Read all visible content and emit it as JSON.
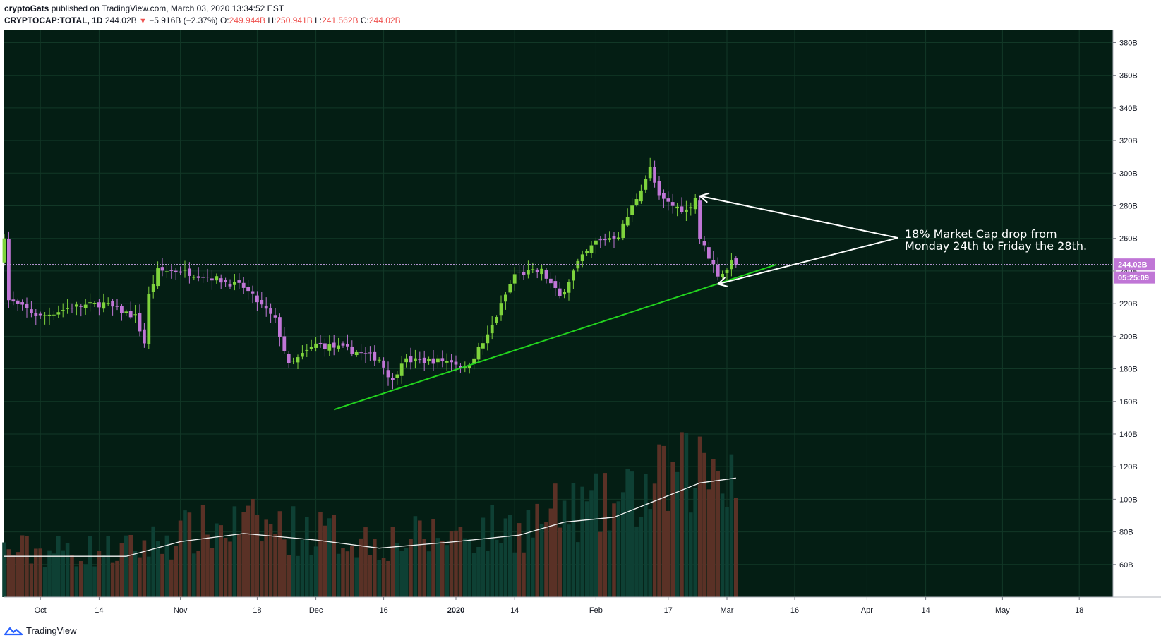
{
  "header": {
    "author": "cryptoGats",
    "published_text": "published on TradingView.com, March 03, 2020 13:34:52 EST",
    "symbol": "CRYPTOCAP:TOTAL, 1D",
    "last": "244.02B",
    "change": "−5.916B (−2.37%)",
    "o_label": "O:",
    "o_value": "249.944B",
    "h_label": "H:",
    "h_value": "250.941B",
    "l_label": "L:",
    "l_value": "241.562B",
    "c_label": "C:",
    "c_value": "244.02B"
  },
  "price_badge": "244.02B",
  "countdown_badge": "05:25:09",
  "annotation": {
    "line1": "18% Market Cap drop from",
    "line2": "Monday 24th to Friday the 28th."
  },
  "footer": {
    "logo_text": "TradingView"
  },
  "colors": {
    "background": "#041e14",
    "up": "#7ed33c",
    "down": "#c076d6",
    "trend": "#22d41e",
    "volume_up": "#0e4034",
    "volume_down": "#5a3126",
    "ma": "#f2f2f2",
    "badge": "#c076d6"
  },
  "chart_data": {
    "type": "candlestick",
    "timeframe": "1D",
    "ylim": [
      40,
      388
    ],
    "y_ticks": [
      "380B",
      "360B",
      "340B",
      "320B",
      "300B",
      "280B",
      "260B",
      "240B",
      "220B",
      "200B",
      "180B",
      "160B",
      "140B",
      "120B",
      "100B",
      "80B",
      "60B"
    ],
    "x_ticks": [
      "Oct",
      "14",
      "Nov",
      "18",
      "Dec",
      "16",
      "2020",
      "14",
      "Feb",
      "17",
      "Mar",
      "16",
      "Apr",
      "14",
      "May",
      "18"
    ],
    "last_price": 244.02,
    "close_points": [
      {
        "date": "2019-09-23",
        "close": 262
      },
      {
        "date": "2019-09-24",
        "close": 222
      },
      {
        "date": "2019-10-01",
        "close": 212
      },
      {
        "date": "2019-10-08",
        "close": 218
      },
      {
        "date": "2019-10-15",
        "close": 220
      },
      {
        "date": "2019-10-22",
        "close": 212
      },
      {
        "date": "2019-10-24",
        "close": 196
      },
      {
        "date": "2019-10-25",
        "close": 225
      },
      {
        "date": "2019-10-27",
        "close": 240
      },
      {
        "date": "2019-11-01",
        "close": 240
      },
      {
        "date": "2019-11-08",
        "close": 236
      },
      {
        "date": "2019-11-15",
        "close": 230
      },
      {
        "date": "2019-11-22",
        "close": 210
      },
      {
        "date": "2019-11-25",
        "close": 182
      },
      {
        "date": "2019-12-01",
        "close": 195
      },
      {
        "date": "2019-12-08",
        "close": 192
      },
      {
        "date": "2019-12-15",
        "close": 186
      },
      {
        "date": "2019-12-18",
        "close": 172
      },
      {
        "date": "2019-12-20",
        "close": 185
      },
      {
        "date": "2019-12-31",
        "close": 185
      },
      {
        "date": "2020-01-03",
        "close": 180
      },
      {
        "date": "2020-01-08",
        "close": 200
      },
      {
        "date": "2020-01-14",
        "close": 238
      },
      {
        "date": "2020-01-20",
        "close": 240
      },
      {
        "date": "2020-01-24",
        "close": 224
      },
      {
        "date": "2020-01-28",
        "close": 245
      },
      {
        "date": "2020-02-01",
        "close": 258
      },
      {
        "date": "2020-02-06",
        "close": 262
      },
      {
        "date": "2020-02-10",
        "close": 285
      },
      {
        "date": "2020-02-13",
        "close": 303
      },
      {
        "date": "2020-02-15",
        "close": 285
      },
      {
        "date": "2020-02-18",
        "close": 280
      },
      {
        "date": "2020-02-21",
        "close": 277
      },
      {
        "date": "2020-02-23",
        "close": 285
      },
      {
        "date": "2020-02-24",
        "close": 260
      },
      {
        "date": "2020-02-28",
        "close": 238
      },
      {
        "date": "2020-03-01",
        "close": 240
      },
      {
        "date": "2020-03-02",
        "close": 248
      },
      {
        "date": "2020-03-03",
        "close": 244
      }
    ],
    "volume_ma_points": [
      {
        "date": "2019-09-23",
        "v": 65
      },
      {
        "date": "2019-10-20",
        "v": 65
      },
      {
        "date": "2019-11-01",
        "v": 74
      },
      {
        "date": "2019-11-15",
        "v": 79
      },
      {
        "date": "2019-12-01",
        "v": 75
      },
      {
        "date": "2019-12-15",
        "v": 70
      },
      {
        "date": "2020-01-01",
        "v": 74
      },
      {
        "date": "2020-01-15",
        "v": 78
      },
      {
        "date": "2020-01-25",
        "v": 86
      },
      {
        "date": "2020-02-05",
        "v": 89
      },
      {
        "date": "2020-02-15",
        "v": 100
      },
      {
        "date": "2020-02-24",
        "v": 110
      },
      {
        "date": "2020-03-03",
        "v": 113
      }
    ],
    "trendline": {
      "start": {
        "date": "2019-12-05",
        "value": 155
      },
      "end": {
        "date": "2020-03-12",
        "value": 244
      }
    },
    "arrows": [
      {
        "tip": {
          "date": "2020-02-24",
          "value": 286
        }
      },
      {
        "tip": {
          "date": "2020-02-28",
          "value": 232
        }
      }
    ]
  }
}
